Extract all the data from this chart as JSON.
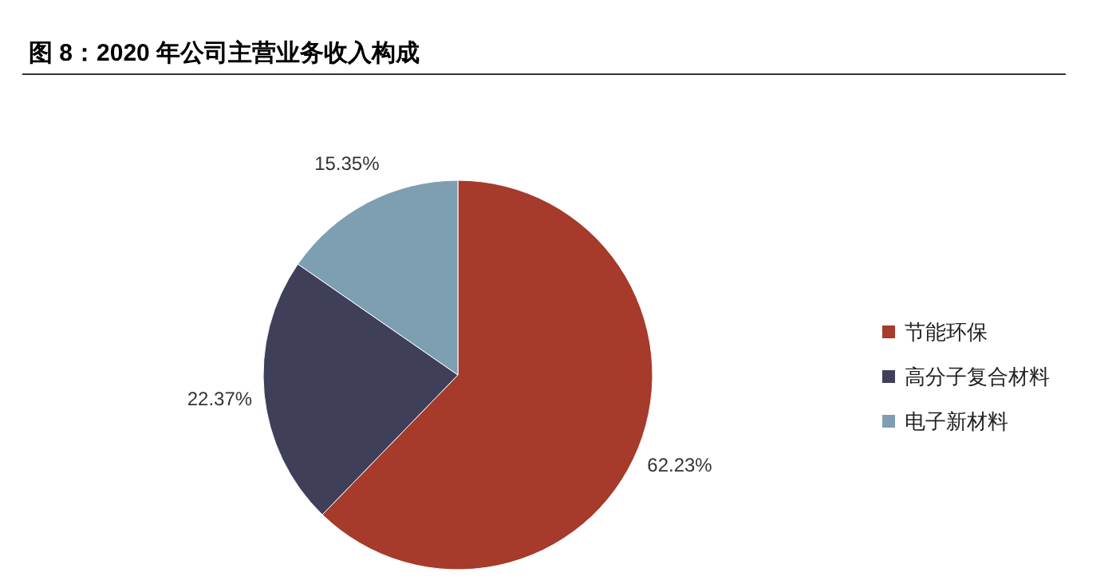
{
  "chart_data": {
    "type": "pie",
    "title": "图 8：2020 年公司主营业务收入构成",
    "categories": [
      "节能环保",
      "高分子复合材料",
      "电子新材料"
    ],
    "values": [
      62.23,
      22.37,
      15.35
    ],
    "value_labels": [
      "62.23%",
      "22.37%",
      "15.35%"
    ],
    "colors": [
      "#a63a2b",
      "#3f3f5a",
      "#7e9fb1"
    ],
    "legend": "right"
  }
}
